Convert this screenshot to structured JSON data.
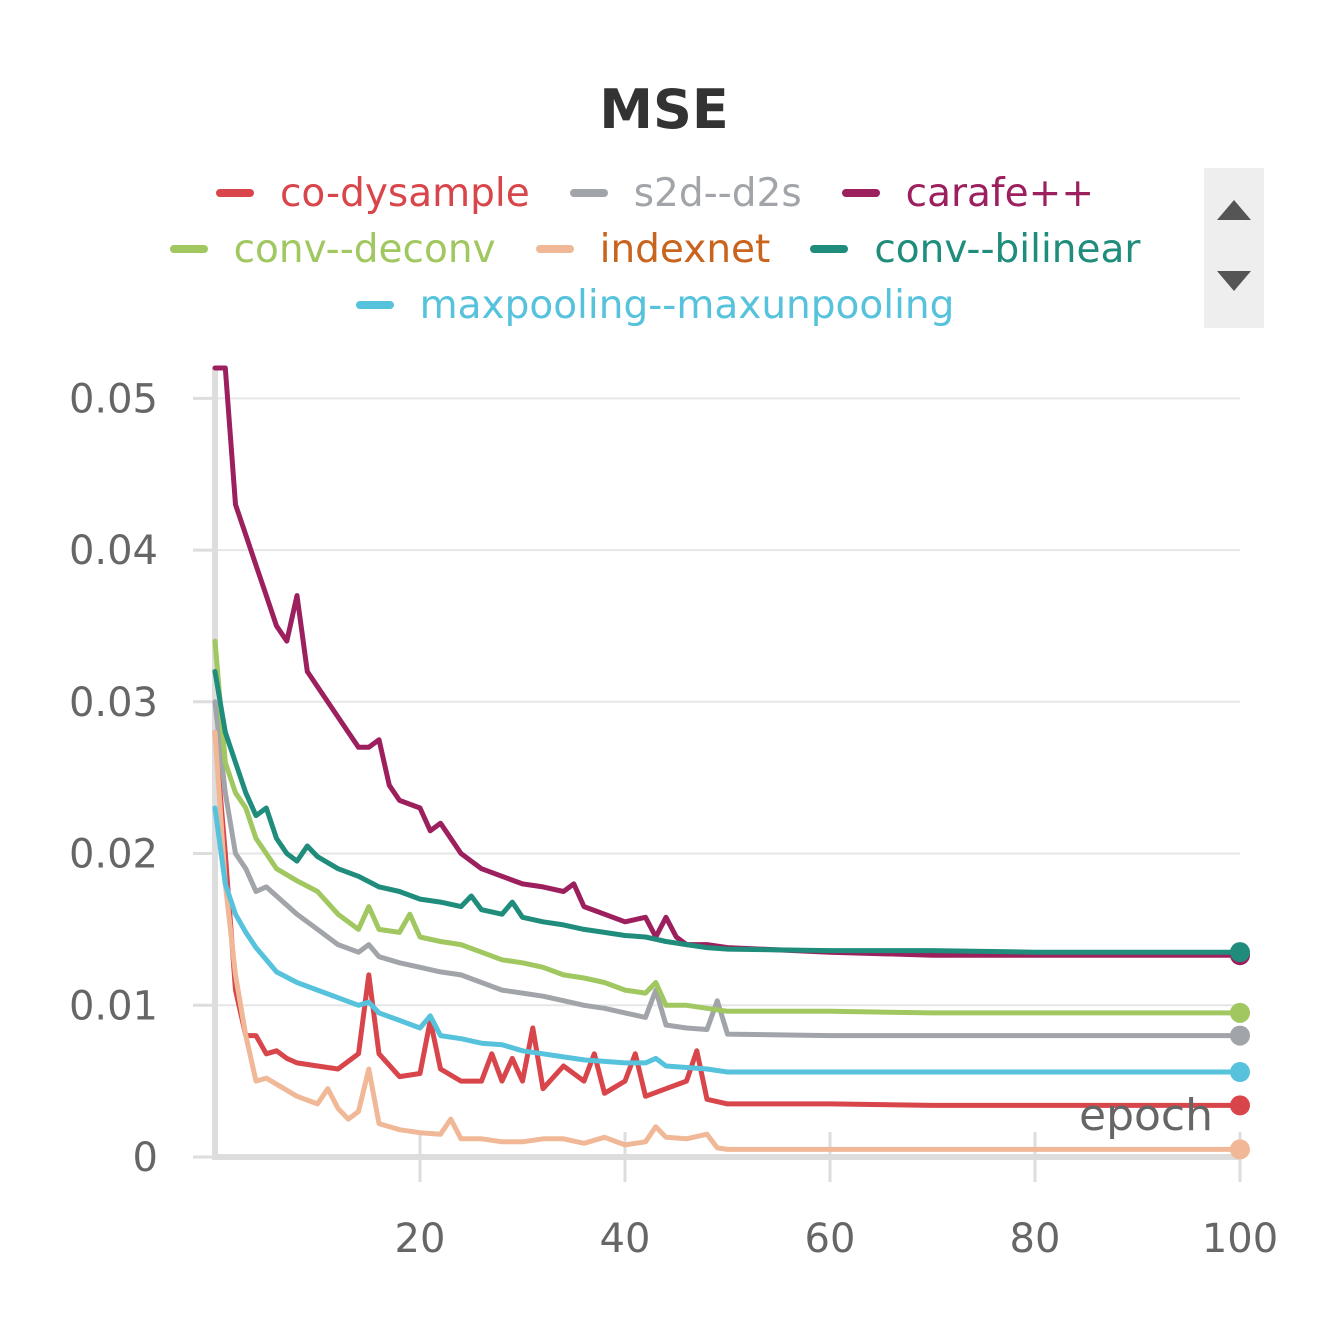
{
  "chart_data": {
    "type": "line",
    "title": "MSE",
    "xlabel": "epoch",
    "ylabel": "",
    "xlim": [
      0,
      100
    ],
    "ylim": [
      0,
      0.052
    ],
    "x_ticks": [
      "20",
      "40",
      "60",
      "80",
      "100"
    ],
    "y_ticks": [
      "0",
      "0.01",
      "0.02",
      "0.03",
      "0.04",
      "0.05"
    ],
    "grid": true,
    "legend_position": "top",
    "series": [
      {
        "name": "co-dysample",
        "color": "#d8454a",
        "points": [
          [
            0,
            0.028
          ],
          [
            1,
            0.02
          ],
          [
            2,
            0.011
          ],
          [
            3,
            0.008
          ],
          [
            4,
            0.008
          ],
          [
            5,
            0.0068
          ],
          [
            6,
            0.007
          ],
          [
            7,
            0.0065
          ],
          [
            8,
            0.0062
          ],
          [
            10,
            0.006
          ],
          [
            12,
            0.0058
          ],
          [
            14,
            0.0068
          ],
          [
            15,
            0.012
          ],
          [
            16,
            0.0068
          ],
          [
            18,
            0.0053
          ],
          [
            20,
            0.0055
          ],
          [
            21,
            0.009
          ],
          [
            22,
            0.0058
          ],
          [
            24,
            0.005
          ],
          [
            26,
            0.005
          ],
          [
            27,
            0.0068
          ],
          [
            28,
            0.005
          ],
          [
            29,
            0.0065
          ],
          [
            30,
            0.005
          ],
          [
            31,
            0.0085
          ],
          [
            32,
            0.0045
          ],
          [
            34,
            0.006
          ],
          [
            36,
            0.005
          ],
          [
            37,
            0.0068
          ],
          [
            38,
            0.0042
          ],
          [
            40,
            0.005
          ],
          [
            41,
            0.0068
          ],
          [
            42,
            0.004
          ],
          [
            44,
            0.0045
          ],
          [
            46,
            0.005
          ],
          [
            47,
            0.007
          ],
          [
            48,
            0.0038
          ],
          [
            50,
            0.0035
          ],
          [
            60,
            0.0035
          ],
          [
            70,
            0.0034
          ],
          [
            80,
            0.0034
          ],
          [
            90,
            0.0034
          ],
          [
            100,
            0.0034
          ]
        ]
      },
      {
        "name": "s2d--d2s",
        "color": "#a1a4a8",
        "points": [
          [
            0,
            0.03
          ],
          [
            1,
            0.024
          ],
          [
            2,
            0.02
          ],
          [
            3,
            0.019
          ],
          [
            4,
            0.0175
          ],
          [
            5,
            0.0178
          ],
          [
            6,
            0.0172
          ],
          [
            8,
            0.016
          ],
          [
            10,
            0.015
          ],
          [
            12,
            0.014
          ],
          [
            14,
            0.0135
          ],
          [
            15,
            0.014
          ],
          [
            16,
            0.0132
          ],
          [
            18,
            0.0128
          ],
          [
            20,
            0.0125
          ],
          [
            22,
            0.0122
          ],
          [
            24,
            0.012
          ],
          [
            26,
            0.0115
          ],
          [
            28,
            0.011
          ],
          [
            30,
            0.0108
          ],
          [
            32,
            0.0106
          ],
          [
            34,
            0.0103
          ],
          [
            36,
            0.01
          ],
          [
            38,
            0.0098
          ],
          [
            40,
            0.0095
          ],
          [
            42,
            0.0092
          ],
          [
            43,
            0.011
          ],
          [
            44,
            0.0087
          ],
          [
            46,
            0.0085
          ],
          [
            48,
            0.0084
          ],
          [
            49,
            0.0103
          ],
          [
            50,
            0.0081
          ],
          [
            60,
            0.008
          ],
          [
            70,
            0.008
          ],
          [
            80,
            0.008
          ],
          [
            90,
            0.008
          ],
          [
            100,
            0.008
          ]
        ]
      },
      {
        "name": "carafe++",
        "color": "#9c1f5e",
        "points": [
          [
            0,
            0.052
          ],
          [
            1,
            0.052
          ],
          [
            2,
            0.043
          ],
          [
            3,
            0.041
          ],
          [
            4,
            0.039
          ],
          [
            5,
            0.037
          ],
          [
            6,
            0.035
          ],
          [
            7,
            0.034
          ],
          [
            8,
            0.037
          ],
          [
            9,
            0.032
          ],
          [
            10,
            0.031
          ],
          [
            12,
            0.029
          ],
          [
            14,
            0.027
          ],
          [
            15,
            0.027
          ],
          [
            16,
            0.0275
          ],
          [
            17,
            0.0245
          ],
          [
            18,
            0.0235
          ],
          [
            20,
            0.023
          ],
          [
            21,
            0.0215
          ],
          [
            22,
            0.022
          ],
          [
            24,
            0.02
          ],
          [
            26,
            0.019
          ],
          [
            28,
            0.0185
          ],
          [
            30,
            0.018
          ],
          [
            32,
            0.0178
          ],
          [
            34,
            0.0175
          ],
          [
            35,
            0.018
          ],
          [
            36,
            0.0165
          ],
          [
            38,
            0.016
          ],
          [
            40,
            0.0155
          ],
          [
            42,
            0.0158
          ],
          [
            43,
            0.0145
          ],
          [
            44,
            0.0158
          ],
          [
            45,
            0.0145
          ],
          [
            46,
            0.014
          ],
          [
            48,
            0.014
          ],
          [
            50,
            0.0138
          ],
          [
            60,
            0.0135
          ],
          [
            70,
            0.0133
          ],
          [
            80,
            0.0133
          ],
          [
            90,
            0.0133
          ],
          [
            100,
            0.0133
          ]
        ]
      },
      {
        "name": "conv--deconv",
        "color": "#a0c760",
        "points": [
          [
            0,
            0.034
          ],
          [
            1,
            0.026
          ],
          [
            2,
            0.024
          ],
          [
            3,
            0.023
          ],
          [
            4,
            0.021
          ],
          [
            5,
            0.02
          ],
          [
            6,
            0.019
          ],
          [
            8,
            0.0182
          ],
          [
            10,
            0.0175
          ],
          [
            12,
            0.016
          ],
          [
            14,
            0.015
          ],
          [
            15,
            0.0165
          ],
          [
            16,
            0.015
          ],
          [
            18,
            0.0148
          ],
          [
            19,
            0.016
          ],
          [
            20,
            0.0145
          ],
          [
            22,
            0.0142
          ],
          [
            24,
            0.014
          ],
          [
            26,
            0.0135
          ],
          [
            28,
            0.013
          ],
          [
            30,
            0.0128
          ],
          [
            32,
            0.0125
          ],
          [
            34,
            0.012
          ],
          [
            36,
            0.0118
          ],
          [
            38,
            0.0115
          ],
          [
            40,
            0.011
          ],
          [
            42,
            0.0108
          ],
          [
            43,
            0.0115
          ],
          [
            44,
            0.01
          ],
          [
            46,
            0.01
          ],
          [
            48,
            0.0098
          ],
          [
            50,
            0.0096
          ],
          [
            60,
            0.0096
          ],
          [
            70,
            0.0095
          ],
          [
            80,
            0.0095
          ],
          [
            90,
            0.0095
          ],
          [
            100,
            0.0095
          ]
        ]
      },
      {
        "name": "indexnet",
        "color": "#f0b896",
        "points": [
          [
            0,
            0.028
          ],
          [
            1,
            0.018
          ],
          [
            2,
            0.012
          ],
          [
            3,
            0.008
          ],
          [
            4,
            0.005
          ],
          [
            5,
            0.0052
          ],
          [
            6,
            0.0048
          ],
          [
            8,
            0.004
          ],
          [
            10,
            0.0035
          ],
          [
            11,
            0.0045
          ],
          [
            12,
            0.0032
          ],
          [
            13,
            0.0025
          ],
          [
            14,
            0.003
          ],
          [
            15,
            0.0058
          ],
          [
            16,
            0.0022
          ],
          [
            18,
            0.0018
          ],
          [
            20,
            0.0016
          ],
          [
            22,
            0.0015
          ],
          [
            23,
            0.0025
          ],
          [
            24,
            0.0012
          ],
          [
            26,
            0.0012
          ],
          [
            28,
            0.001
          ],
          [
            30,
            0.001
          ],
          [
            32,
            0.0012
          ],
          [
            34,
            0.0012
          ],
          [
            36,
            0.0009
          ],
          [
            38,
            0.0013
          ],
          [
            40,
            0.0008
          ],
          [
            42,
            0.001
          ],
          [
            43,
            0.002
          ],
          [
            44,
            0.0013
          ],
          [
            46,
            0.0012
          ],
          [
            48,
            0.0015
          ],
          [
            49,
            0.0006
          ],
          [
            50,
            0.0005
          ],
          [
            60,
            0.0005
          ],
          [
            70,
            0.0005
          ],
          [
            80,
            0.0005
          ],
          [
            90,
            0.0005
          ],
          [
            100,
            0.0005
          ]
        ]
      },
      {
        "name": "conv--bilinear",
        "color": "#1f8c7c",
        "points": [
          [
            0,
            0.032
          ],
          [
            1,
            0.028
          ],
          [
            2,
            0.026
          ],
          [
            3,
            0.024
          ],
          [
            4,
            0.0225
          ],
          [
            5,
            0.023
          ],
          [
            6,
            0.021
          ],
          [
            7,
            0.02
          ],
          [
            8,
            0.0195
          ],
          [
            9,
            0.0205
          ],
          [
            10,
            0.0198
          ],
          [
            12,
            0.019
          ],
          [
            14,
            0.0185
          ],
          [
            16,
            0.0178
          ],
          [
            18,
            0.0175
          ],
          [
            20,
            0.017
          ],
          [
            22,
            0.0168
          ],
          [
            24,
            0.0165
          ],
          [
            25,
            0.0172
          ],
          [
            26,
            0.0163
          ],
          [
            28,
            0.016
          ],
          [
            29,
            0.0168
          ],
          [
            30,
            0.0158
          ],
          [
            32,
            0.0155
          ],
          [
            34,
            0.0153
          ],
          [
            36,
            0.015
          ],
          [
            38,
            0.0148
          ],
          [
            40,
            0.0146
          ],
          [
            42,
            0.0145
          ],
          [
            44,
            0.0142
          ],
          [
            46,
            0.014
          ],
          [
            48,
            0.0138
          ],
          [
            50,
            0.0137
          ],
          [
            60,
            0.0136
          ],
          [
            70,
            0.0136
          ],
          [
            80,
            0.0135
          ],
          [
            90,
            0.0135
          ],
          [
            100,
            0.0135
          ]
        ]
      },
      {
        "name": "maxpooling--maxunpooling",
        "color": "#56c2dc",
        "points": [
          [
            0,
            0.023
          ],
          [
            1,
            0.018
          ],
          [
            2,
            0.016
          ],
          [
            3,
            0.0148
          ],
          [
            4,
            0.0138
          ],
          [
            5,
            0.013
          ],
          [
            6,
            0.0122
          ],
          [
            8,
            0.0115
          ],
          [
            10,
            0.011
          ],
          [
            12,
            0.0105
          ],
          [
            14,
            0.01
          ],
          [
            15,
            0.0102
          ],
          [
            16,
            0.0095
          ],
          [
            18,
            0.009
          ],
          [
            20,
            0.0085
          ],
          [
            21,
            0.0093
          ],
          [
            22,
            0.008
          ],
          [
            24,
            0.0078
          ],
          [
            26,
            0.0075
          ],
          [
            28,
            0.0074
          ],
          [
            30,
            0.007
          ],
          [
            32,
            0.0068
          ],
          [
            34,
            0.0066
          ],
          [
            36,
            0.0064
          ],
          [
            38,
            0.0063
          ],
          [
            40,
            0.0062
          ],
          [
            42,
            0.0062
          ],
          [
            43,
            0.0065
          ],
          [
            44,
            0.006
          ],
          [
            46,
            0.0059
          ],
          [
            48,
            0.0058
          ],
          [
            50,
            0.0056
          ],
          [
            60,
            0.0056
          ],
          [
            70,
            0.0056
          ],
          [
            80,
            0.0056
          ],
          [
            90,
            0.0056
          ],
          [
            100,
            0.0056
          ]
        ]
      }
    ]
  },
  "legend": {
    "scroll_up_icon": "triangle-up-icon",
    "scroll_down_icon": "triangle-down-icon"
  }
}
